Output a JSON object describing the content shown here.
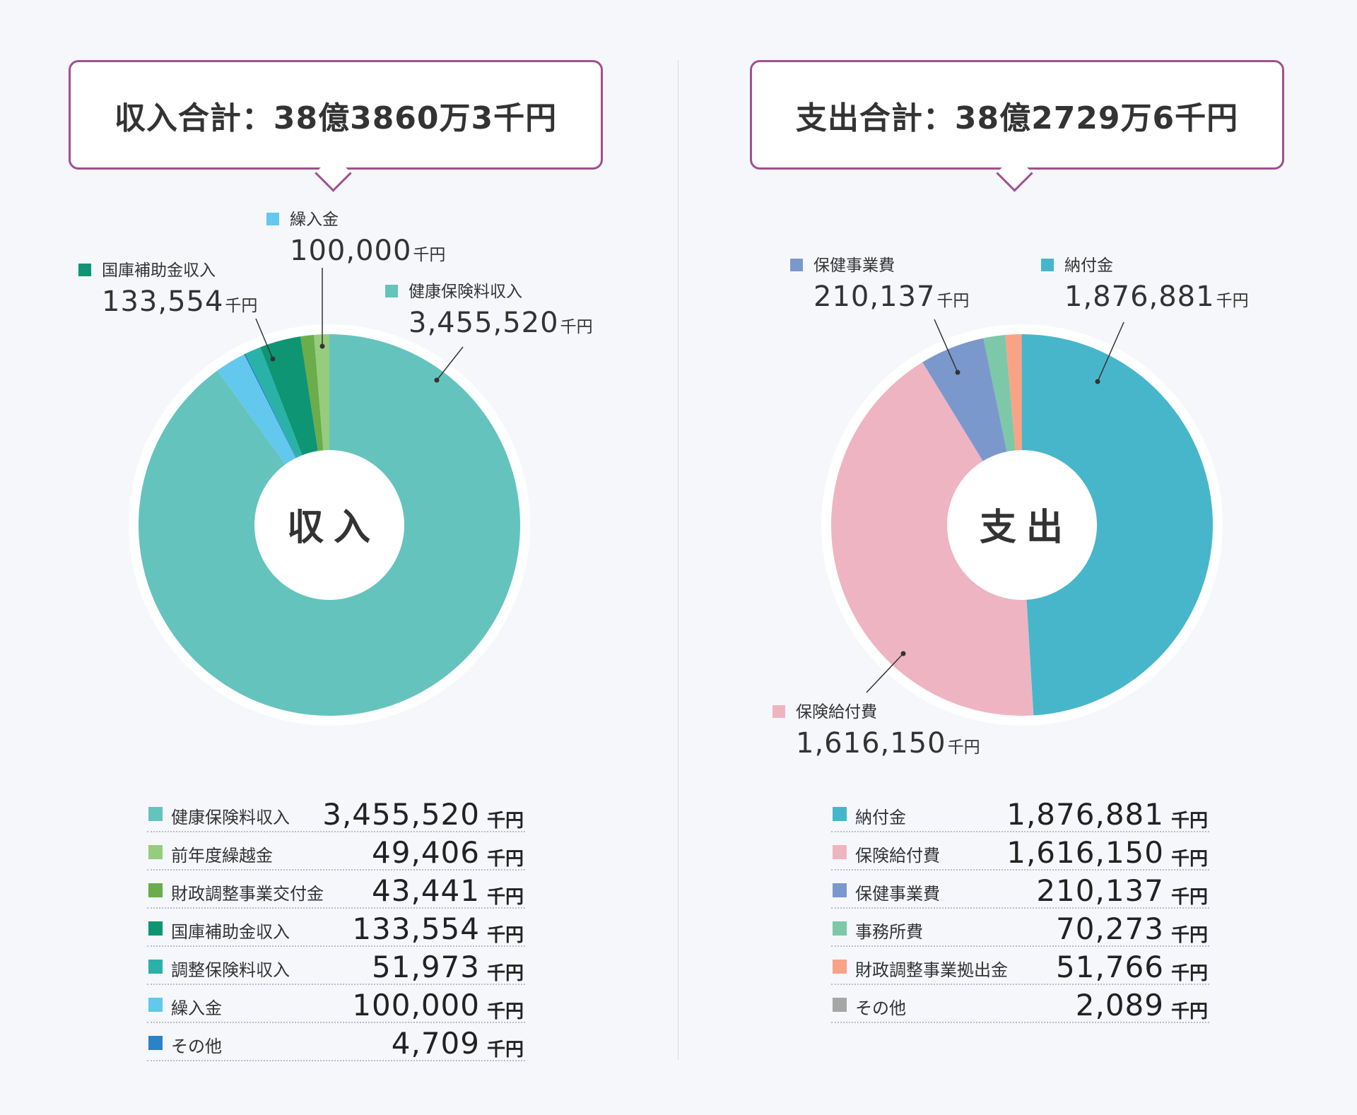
{
  "income": {
    "total_label": "収入合計：38億3860万3千円",
    "center_label": "収入",
    "unit": "千円",
    "callouts": [
      {
        "name": "国庫補助金収入",
        "value": "133,554"
      },
      {
        "name": "繰入金",
        "value": "100,000"
      },
      {
        "name": "健康保険料収入",
        "value": "3,455,520"
      }
    ],
    "items": [
      {
        "name": "健康保険料収入",
        "value": "3,455,520",
        "color": "#65c3bd"
      },
      {
        "name": "前年度繰越金",
        "value": "49,406",
        "color": "#96cc7e"
      },
      {
        "name": "財政調整事業交付金",
        "value": "43,441",
        "color": "#6aad4a"
      },
      {
        "name": "国庫補助金収入",
        "value": "133,554",
        "color": "#0e9574"
      },
      {
        "name": "調整保険料収入",
        "value": "51,973",
        "color": "#2ab2a8"
      },
      {
        "name": "繰入金",
        "value": "100,000",
        "color": "#62c8ee"
      },
      {
        "name": "その他",
        "value": "4,709",
        "color": "#2a82c8"
      }
    ]
  },
  "expense": {
    "total_label": "支出合計：38億2729万6千円",
    "center_label": "支出",
    "unit": "千円",
    "callouts": [
      {
        "name": "保健事業費",
        "value": "210,137"
      },
      {
        "name": "納付金",
        "value": "1,876,881"
      },
      {
        "name": "保険給付費",
        "value": "1,616,150"
      }
    ],
    "items": [
      {
        "name": "納付金",
        "value": "1,876,881",
        "color": "#48b6ca"
      },
      {
        "name": "保険給付費",
        "value": "1,616,150",
        "color": "#efb4c2"
      },
      {
        "name": "保健事業費",
        "value": "210,137",
        "color": "#7b98cc"
      },
      {
        "name": "事務所費",
        "value": "70,273",
        "color": "#7cc8a9"
      },
      {
        "name": "財政調整事業拠出金",
        "value": "51,766",
        "color": "#f9a386"
      },
      {
        "name": "その他",
        "value": "2,089",
        "color": "#a6a6a6"
      }
    ]
  },
  "chart_data": [
    {
      "type": "pie",
      "title": "収入合計：38億3860万3千円",
      "unit": "千円",
      "categories": [
        "健康保険料収入",
        "繰入金",
        "その他",
        "調整保険料収入",
        "国庫補助金収入",
        "財政調整事業交付金",
        "前年度繰越金"
      ],
      "values": [
        3455520,
        100000,
        4709,
        51973,
        133554,
        43441,
        49406
      ]
    },
    {
      "type": "pie",
      "title": "支出合計：38億2729万6千円",
      "unit": "千円",
      "categories": [
        "納付金",
        "保険給付費",
        "保健事業費",
        "事務所費",
        "財政調整事業拠出金",
        "その他"
      ],
      "values": [
        1876881,
        1616150,
        210137,
        70273,
        51766,
        2089
      ]
    }
  ]
}
